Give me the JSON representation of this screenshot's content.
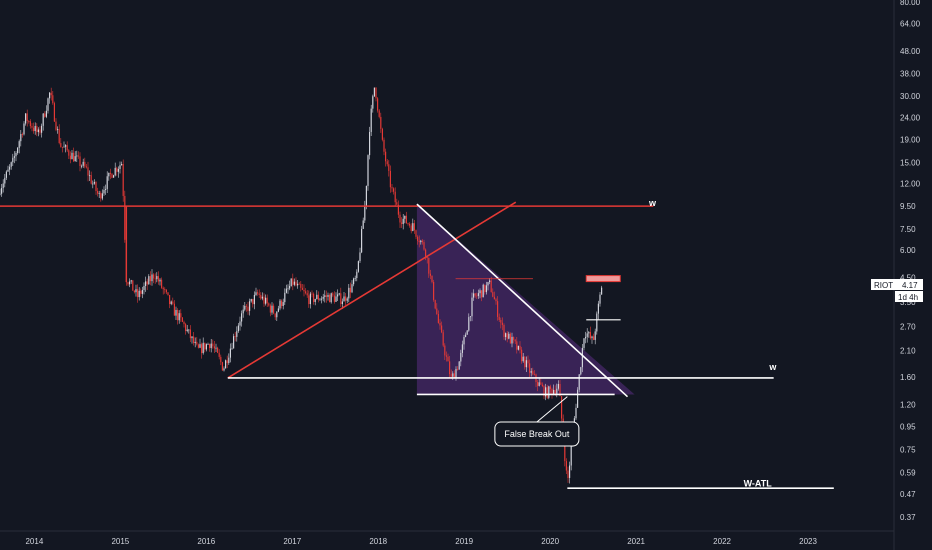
{
  "chart_data": {
    "type": "candlestick",
    "symbol": "RIOT",
    "last_price": "4.17",
    "interval": "1d 4h",
    "y_scale": "log",
    "ylim": [
      0.33,
      80
    ],
    "y_ticks": [
      "80.00",
      "64.00",
      "48.00",
      "38.00",
      "30.00",
      "24.00",
      "19.00",
      "15.00",
      "12.00",
      "9.50",
      "7.50",
      "6.00",
      "4.50",
      "3.50",
      "2.70",
      "2.10",
      "1.60",
      "1.20",
      "0.95",
      "0.75",
      "0.59",
      "0.47",
      "0.37"
    ],
    "x_ticks": [
      "2014",
      "2015",
      "2016",
      "2017",
      "2018",
      "2019",
      "2020",
      "2021",
      "2022",
      "2023"
    ],
    "x_range": [
      2013.6,
      2024.0
    ],
    "price_path": [
      [
        2013.6,
        11.5
      ],
      [
        2013.75,
        15
      ],
      [
        2013.9,
        24
      ],
      [
        2014.05,
        20
      ],
      [
        2014.18,
        31
      ],
      [
        2014.3,
        18
      ],
      [
        2014.45,
        16
      ],
      [
        2014.6,
        14
      ],
      [
        2014.75,
        10.5
      ],
      [
        2014.9,
        13.5
      ],
      [
        2015.02,
        15
      ],
      [
        2015.07,
        4.5
      ],
      [
        2015.2,
        3.7
      ],
      [
        2015.4,
        4.7
      ],
      [
        2015.6,
        3.3
      ],
      [
        2015.75,
        2.7
      ],
      [
        2015.9,
        2.1
      ],
      [
        2016.05,
        2.3
      ],
      [
        2016.2,
        1.75
      ],
      [
        2016.4,
        3.0
      ],
      [
        2016.6,
        3.8
      ],
      [
        2016.8,
        3.1
      ],
      [
        2017.0,
        4.3
      ],
      [
        2017.2,
        3.6
      ],
      [
        2017.4,
        3.7
      ],
      [
        2017.6,
        3.6
      ],
      [
        2017.75,
        4.5
      ],
      [
        2017.85,
        10
      ],
      [
        2017.9,
        22
      ],
      [
        2017.96,
        34
      ],
      [
        2018.05,
        18
      ],
      [
        2018.15,
        11.5
      ],
      [
        2018.25,
        8.5
      ],
      [
        2018.4,
        7.7
      ],
      [
        2018.55,
        6.0
      ],
      [
        2018.7,
        2.8
      ],
      [
        2018.85,
        1.55
      ],
      [
        2018.95,
        1.9
      ],
      [
        2019.1,
        3.6
      ],
      [
        2019.3,
        4.2
      ],
      [
        2019.45,
        2.6
      ],
      [
        2019.6,
        2.2
      ],
      [
        2019.8,
        1.6
      ],
      [
        2019.95,
        1.35
      ],
      [
        2020.1,
        1.45
      ],
      [
        2020.2,
        0.52
      ],
      [
        2020.3,
        1.2
      ],
      [
        2020.4,
        2.6
      ],
      [
        2020.5,
        2.3
      ],
      [
        2020.6,
        4.17
      ]
    ],
    "annotations": [
      {
        "type": "label",
        "text": "w",
        "at": [
          2021.15,
          9.5
        ]
      },
      {
        "type": "label",
        "text": "w",
        "at": [
          2022.55,
          1.72
        ]
      },
      {
        "type": "label",
        "text": "W-ATL",
        "at": [
          2022.25,
          0.51
        ]
      },
      {
        "type": "callout",
        "text": "False Break Out",
        "at": [
          2019.45,
          0.88
        ]
      }
    ],
    "lines": [
      {
        "type": "horizontal",
        "y": 9.5,
        "x": [
          2013.6,
          2021.2
        ],
        "color": "#e53935"
      },
      {
        "type": "trend",
        "from": [
          2016.25,
          1.58
        ],
        "to": [
          2019.6,
          9.9
        ],
        "color": "#e53935"
      },
      {
        "type": "horizontal",
        "y": 1.58,
        "x": [
          2016.25,
          2022.6
        ],
        "color": "#ffffff"
      },
      {
        "type": "horizontal",
        "y": 1.33,
        "x": [
          2018.45,
          2020.75
        ],
        "color": "#ffffff"
      },
      {
        "type": "trend",
        "from": [
          2018.45,
          9.7
        ],
        "to": [
          2020.9,
          1.3
        ],
        "color": "#ffffff"
      },
      {
        "type": "horizontal",
        "y": 0.5,
        "x": [
          2020.2,
          2023.3
        ],
        "color": "#ffffff"
      }
    ],
    "grid": false,
    "background": "#131722",
    "colors": {
      "up": "#d1d4dc",
      "down": "#e53935",
      "triangle_fill": "#5a2d82",
      "price_tag": "#ffffff",
      "price_tag_text": "#131722"
    }
  }
}
